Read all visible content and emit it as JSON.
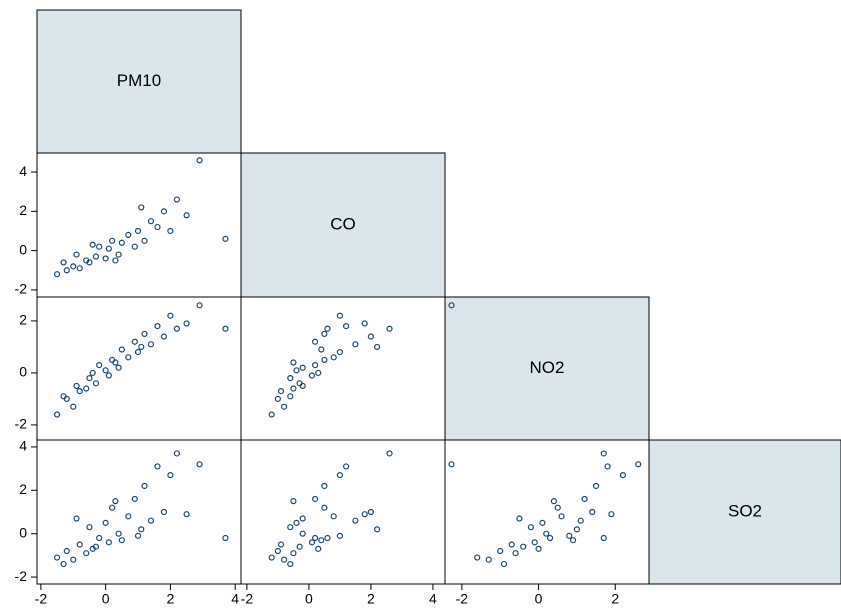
{
  "chart_data": {
    "type": "scatter-matrix",
    "color": "#1a476f",
    "diagonal_color": "#dae5ec",
    "variables": [
      {
        "name": "PM10",
        "lim": [
          -2.12,
          4.18
        ],
        "ticks": [
          -2,
          0,
          2,
          4
        ],
        "values": [
          -1.5,
          -1.2,
          -1.0,
          -0.8,
          -0.6,
          -0.5,
          -0.3,
          -0.2,
          0,
          0.1,
          0.2,
          0.4,
          0.5,
          0.7,
          0.9,
          1.0,
          1.2,
          1.4,
          1.6,
          1.8,
          2.0,
          2.2,
          2.5,
          2.9,
          3.7,
          -1.3,
          -0.9,
          -0.4,
          0.3,
          1.1
        ]
      },
      {
        "name": "CO",
        "lim": [
          -2.19,
          4.39
        ],
        "ylim": [
          -2.36,
          4.97
        ],
        "ticks": [
          -2,
          0,
          2,
          4
        ],
        "values": [
          -1.2,
          -1.0,
          -0.8,
          -0.9,
          -0.5,
          -0.6,
          -0.3,
          0.2,
          -0.4,
          0.1,
          0.5,
          -0.2,
          0.4,
          0.8,
          0.2,
          1.0,
          0.5,
          1.5,
          1.2,
          2.0,
          1.0,
          2.6,
          1.8,
          4.6,
          0.6,
          -0.6,
          -0.2,
          0.3,
          -0.5,
          2.2
        ]
      },
      {
        "name": "NO2",
        "lim": [
          -2.44,
          2.88
        ],
        "ylim": [
          -2.58,
          2.92
        ],
        "ticks": [
          -2,
          0,
          2
        ],
        "values": [
          -1.6,
          -1.0,
          -1.3,
          -0.7,
          -0.6,
          -0.2,
          -0.4,
          0.3,
          0.1,
          -0.1,
          0.5,
          0.2,
          0.9,
          0.6,
          1.2,
          0.8,
          1.5,
          1.1,
          1.8,
          1.4,
          2.2,
          1.7,
          1.9,
          2.6,
          1.7,
          -0.9,
          -0.5,
          0.0,
          0.4,
          1.0
        ]
      },
      {
        "name": "SO2",
        "ylim": [
          -2.32,
          4.32
        ],
        "ticks": [
          -2,
          0,
          2,
          4
        ],
        "values": [
          -1.1,
          -0.8,
          -1.2,
          -0.5,
          -0.9,
          0.3,
          -0.6,
          -0.2,
          0.5,
          -0.4,
          1.2,
          0.0,
          -0.3,
          0.8,
          1.6,
          -0.1,
          2.2,
          0.6,
          3.1,
          1.0,
          2.7,
          3.7,
          0.9,
          3.2,
          -0.2,
          -1.4,
          0.7,
          -0.7,
          1.5,
          0.2
        ]
      }
    ]
  }
}
